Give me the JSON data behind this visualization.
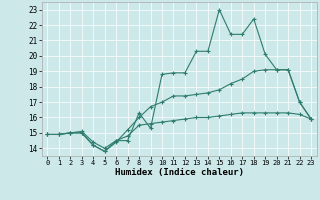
{
  "title": "",
  "xlabel": "Humidex (Indice chaleur)",
  "ylabel": "",
  "bg_color": "#cce8e8",
  "line_color": "#2e7d6e",
  "xlim": [
    -0.5,
    23.5
  ],
  "ylim": [
    13.5,
    23.5
  ],
  "xticks": [
    0,
    1,
    2,
    3,
    4,
    5,
    6,
    7,
    8,
    9,
    10,
    11,
    12,
    13,
    14,
    15,
    16,
    17,
    18,
    19,
    20,
    21,
    22,
    23
  ],
  "yticks": [
    14,
    15,
    16,
    17,
    18,
    19,
    20,
    21,
    22,
    23
  ],
  "line1_x": [
    0,
    1,
    2,
    3,
    4,
    5,
    6,
    7,
    8,
    9,
    10,
    11,
    12,
    13,
    14,
    15,
    16,
    17,
    18,
    19,
    20,
    21,
    22,
    23
  ],
  "line1_y": [
    14.9,
    14.9,
    15.0,
    15.0,
    14.2,
    13.8,
    14.5,
    14.5,
    16.3,
    15.3,
    18.8,
    18.9,
    18.9,
    20.3,
    20.3,
    23.0,
    21.4,
    21.4,
    22.4,
    20.1,
    19.1,
    19.1,
    17.0,
    15.9
  ],
  "line2_x": [
    0,
    1,
    2,
    3,
    4,
    5,
    6,
    7,
    8,
    9,
    10,
    11,
    12,
    13,
    14,
    15,
    16,
    17,
    18,
    19,
    20,
    21,
    22,
    23
  ],
  "line2_y": [
    14.9,
    14.9,
    15.0,
    15.0,
    14.2,
    13.8,
    14.4,
    15.2,
    16.0,
    16.7,
    17.0,
    17.4,
    17.4,
    17.5,
    17.6,
    17.8,
    18.2,
    18.5,
    19.0,
    19.1,
    19.1,
    19.1,
    17.0,
    15.9
  ],
  "line3_x": [
    0,
    1,
    2,
    3,
    4,
    5,
    6,
    7,
    8,
    9,
    10,
    11,
    12,
    13,
    14,
    15,
    16,
    17,
    18,
    19,
    20,
    21,
    22,
    23
  ],
  "line3_y": [
    14.9,
    14.9,
    15.0,
    15.1,
    14.4,
    14.0,
    14.5,
    14.8,
    15.5,
    15.6,
    15.7,
    15.8,
    15.9,
    16.0,
    16.0,
    16.1,
    16.2,
    16.3,
    16.3,
    16.3,
    16.3,
    16.3,
    16.2,
    15.9
  ]
}
